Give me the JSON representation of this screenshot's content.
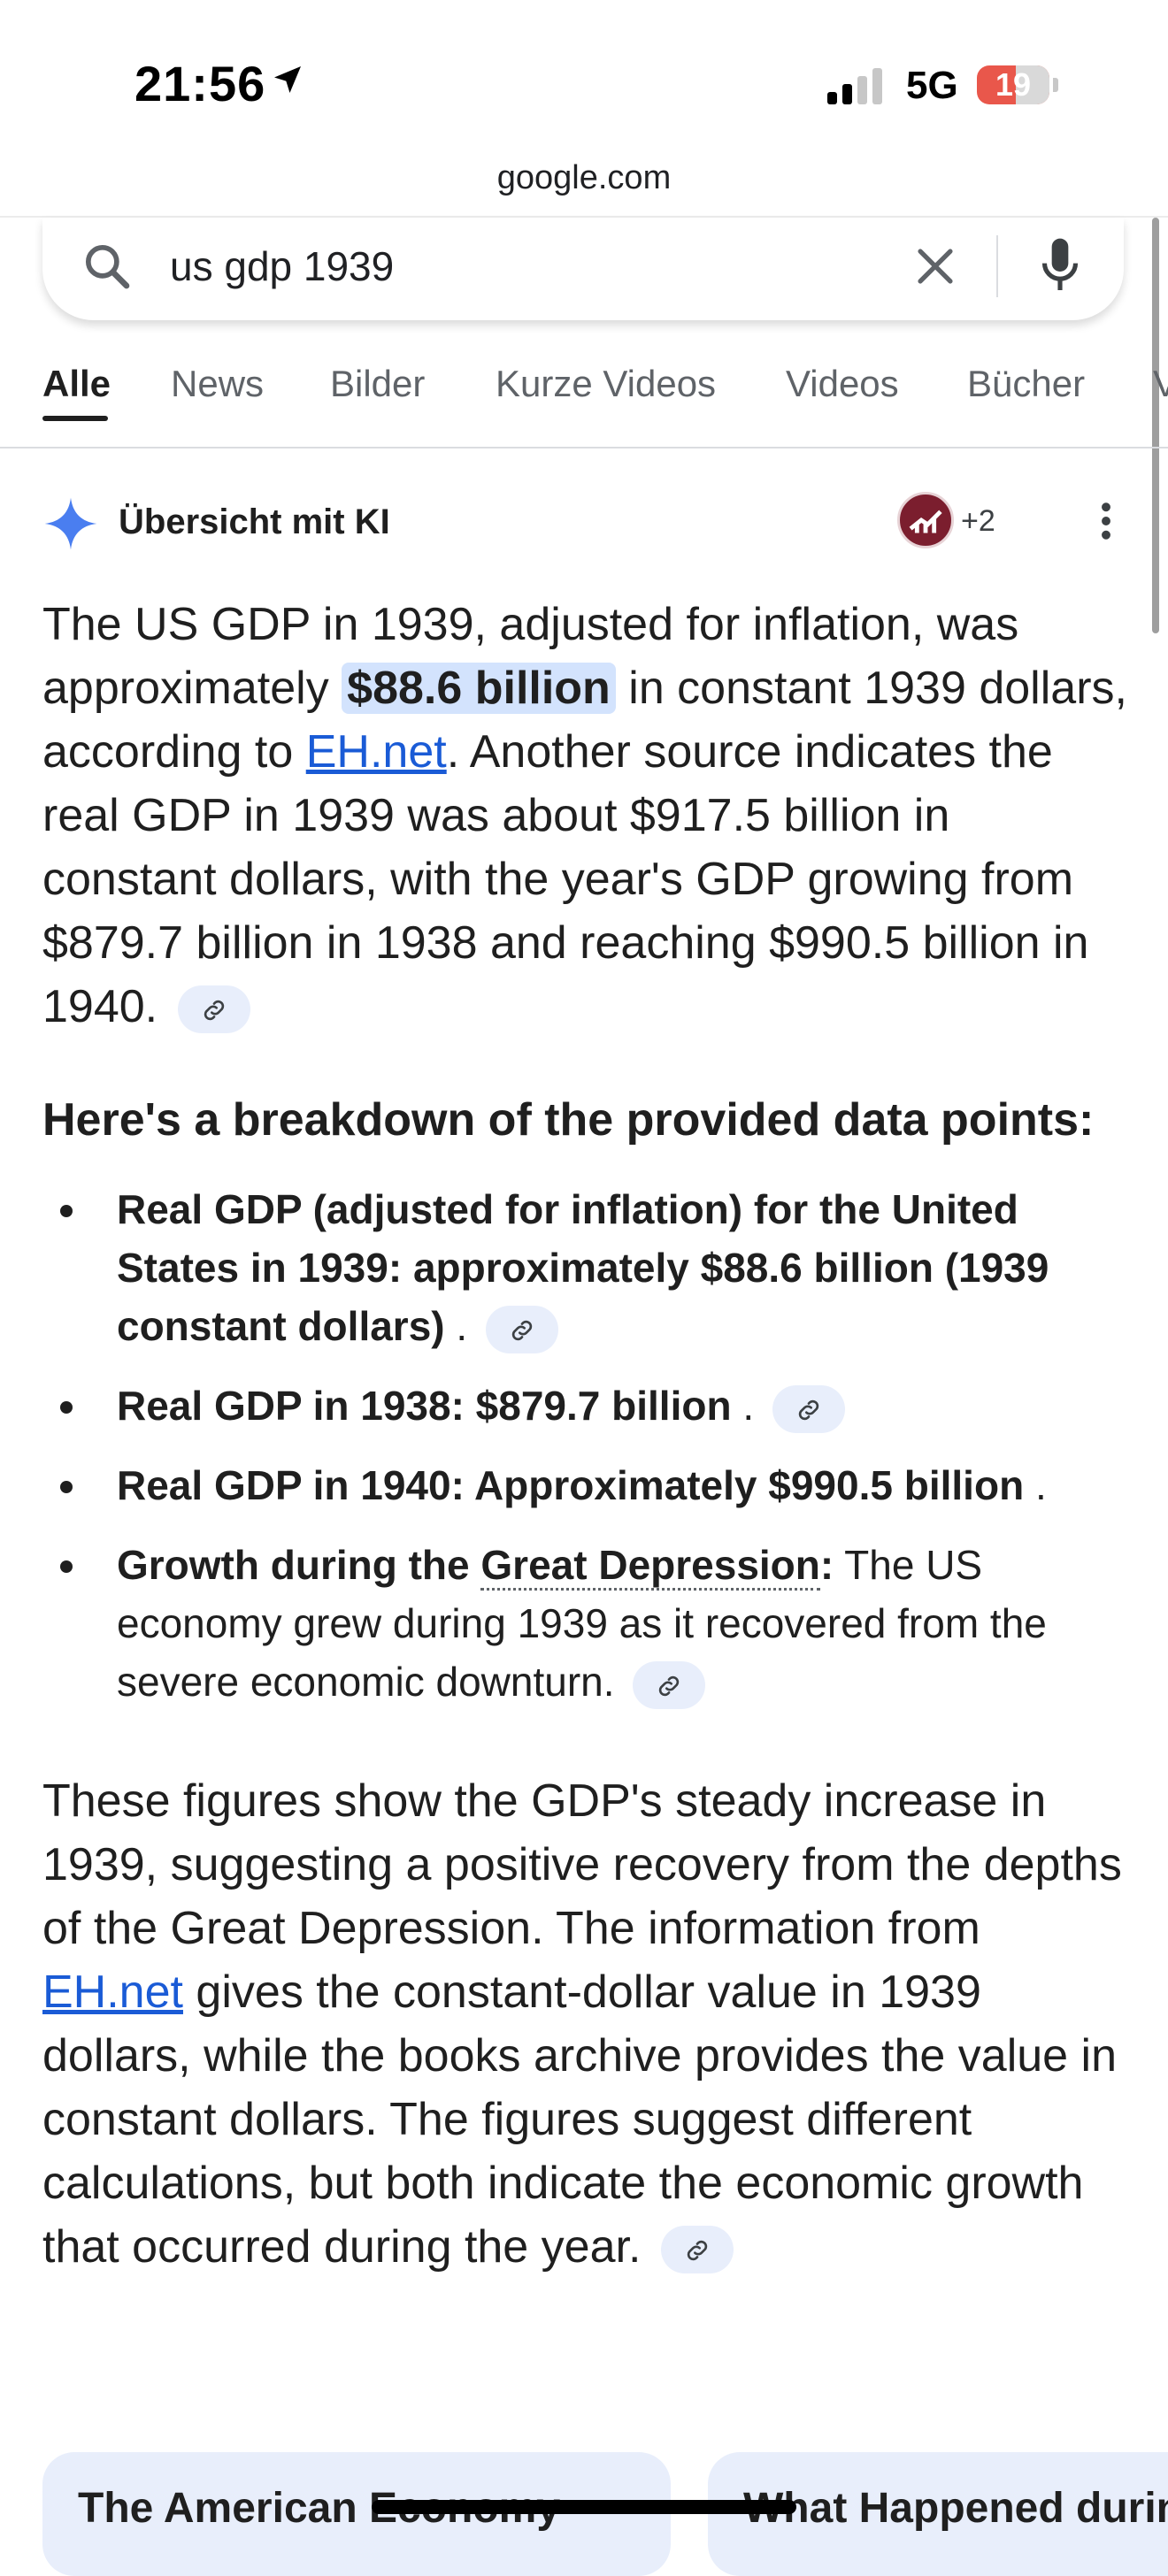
{
  "status": {
    "time": "21:56",
    "network": "5G",
    "battery": "19"
  },
  "browser": {
    "url": "google.com"
  },
  "search": {
    "query": "us gdp 1939"
  },
  "tabs": [
    "Alle",
    "News",
    "Bilder",
    "Kurze Videos",
    "Videos",
    "Bücher",
    "V"
  ],
  "ai_overview": {
    "title": "Übersicht mit KI",
    "sources_more": "+2",
    "intro": {
      "t1": "The US GDP in 1939, adjusted for inflation, was approximately ",
      "highlight": "$88.6 billion",
      "t2": " in constant 1939 dollars, according to ",
      "link": "EH.net",
      "t3": ". Another source indicates the real GDP in 1939 was about $917.5 billion in constant dollars, with the year's GDP growing from $879.7 billion in 1938 and reaching $990.5 billion in 1940."
    },
    "heading": "Here's a breakdown of the provided data points:",
    "bullets": [
      {
        "bold": "Real GDP (adjusted for inflation) for the United States in 1939: approximately $88.6 billion (1939 constant dollars)",
        "rest": " ."
      },
      {
        "bold": "Real GDP in 1938: $879.7 billion",
        "rest": " ."
      },
      {
        "bold": "Real GDP in 1940: Approximately $990.5 billion",
        "rest": " ."
      },
      {
        "bold_pre": "Growth during the ",
        "bold_link": "Great Depression",
        "bold_post": ":",
        "rest": " The US economy grew during 1939 as it recovered from the severe economic downturn."
      }
    ],
    "summary": {
      "t1": "These figures show the GDP's steady increase in 1939, suggesting a positive recovery from the depths of the Great Depression. The information from ",
      "link": "EH.net",
      "t2": " gives the constant-dollar value in 1939 dollars, while the books archive provides the value in constant dollars. The figures suggest different calculations, but both indicate the economic growth that occurred during the year."
    }
  },
  "cards": [
    "The American Economy",
    "What Happened during"
  ],
  "icons": [
    "location-arrow-icon",
    "signal-icon",
    "search-icon",
    "close-icon",
    "mic-icon",
    "sparkle-icon",
    "more-vert-icon",
    "link-icon"
  ]
}
